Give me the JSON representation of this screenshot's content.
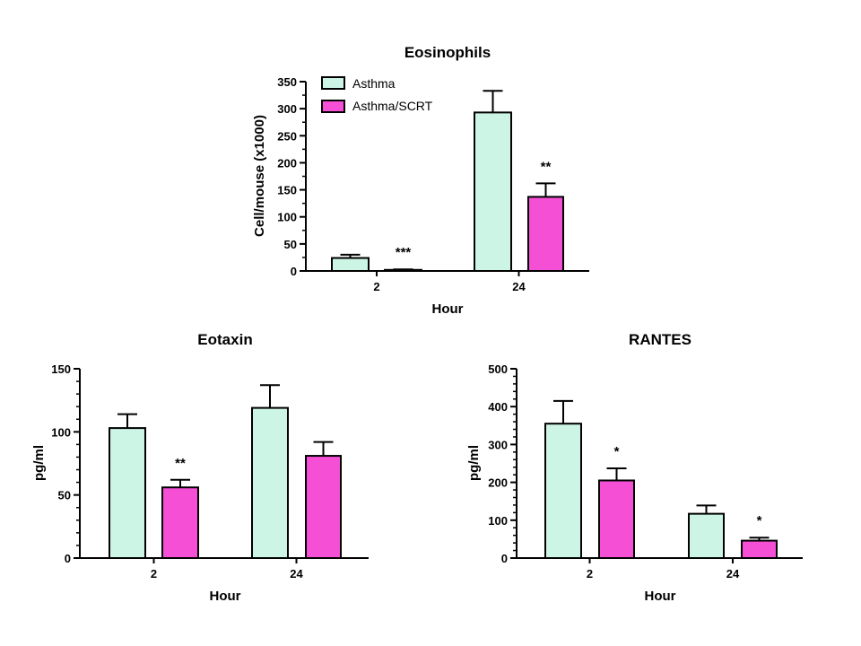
{
  "colors": {
    "asthma": "#ccf5e6",
    "asthma_scrt": "#f54fd6",
    "stroke": "#000000"
  },
  "legend": {
    "items": [
      {
        "label": "Asthma",
        "color": "#ccf5e6"
      },
      {
        "label": "Asthma/SCRT",
        "color": "#f54fd6"
      }
    ]
  },
  "chart_data": [
    {
      "type": "bar",
      "title": "Eosinophils",
      "xlabel": "Hour",
      "ylabel": "Cell/mouse (x1000)",
      "categories": [
        "2",
        "24"
      ],
      "ylim": [
        0,
        350
      ],
      "yticks": [
        "0",
        "50",
        "100",
        "150",
        "200",
        "250",
        "300",
        "350"
      ],
      "minor_step": 25,
      "legend_position": "top-left",
      "series": [
        {
          "name": "Asthma",
          "values": [
            24,
            293
          ],
          "errors": [
            6,
            40
          ]
        },
        {
          "name": "Asthma/SCRT",
          "values": [
            2,
            137
          ],
          "errors": [
            1,
            25
          ]
        }
      ],
      "significance": [
        [
          "",
          ""
        ],
        [
          "***",
          "**"
        ]
      ]
    },
    {
      "type": "bar",
      "title": "Eotaxin",
      "xlabel": "Hour",
      "ylabel": "pg/ml",
      "categories": [
        "2",
        "24"
      ],
      "ylim": [
        0,
        150
      ],
      "yticks": [
        "0",
        "50",
        "100",
        "150"
      ],
      "minor_step": 10,
      "series": [
        {
          "name": "Asthma",
          "values": [
            103,
            119
          ],
          "errors": [
            11,
            18
          ]
        },
        {
          "name": "Asthma/SCRT",
          "values": [
            56,
            81
          ],
          "errors": [
            6,
            11
          ]
        }
      ],
      "significance": [
        [
          "",
          ""
        ],
        [
          "**",
          ""
        ]
      ]
    },
    {
      "type": "bar",
      "title": "RANTES",
      "xlabel": "Hour",
      "ylabel": "pg/ml",
      "categories": [
        "2",
        "24"
      ],
      "ylim": [
        0,
        500
      ],
      "yticks": [
        "0",
        "100",
        "200",
        "300",
        "400",
        "500"
      ],
      "minor_step": 20,
      "series": [
        {
          "name": "Asthma",
          "values": [
            355,
            117
          ],
          "errors": [
            60,
            22
          ]
        },
        {
          "name": "Asthma/SCRT",
          "values": [
            205,
            46
          ],
          "errors": [
            32,
            8
          ]
        }
      ],
      "significance": [
        [
          "",
          ""
        ],
        [
          "*",
          "*"
        ]
      ]
    }
  ]
}
